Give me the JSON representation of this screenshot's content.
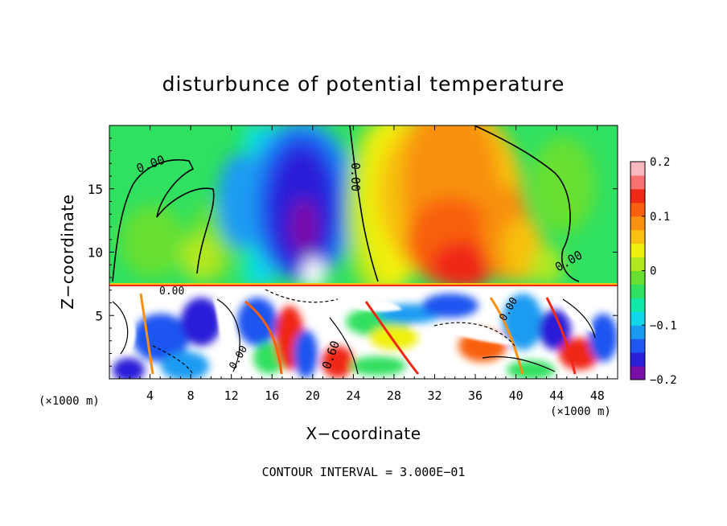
{
  "chart_data": {
    "type": "heatmap",
    "title": "disturbunce of potential temperature",
    "xlabel": "X−coordinate",
    "ylabel": "Z−coordinate",
    "x_unit_left": "(×1000 m)",
    "x_unit_right": "(×1000 m)",
    "footer": "CONTOUR INTERVAL = 3.000E−01",
    "xlim": [
      0,
      50
    ],
    "ylim": [
      0,
      20
    ],
    "x_ticks": [
      4,
      8,
      12,
      16,
      20,
      24,
      28,
      32,
      36,
      40,
      44,
      48
    ],
    "y_ticks": [
      5,
      10,
      15
    ],
    "colorbar": {
      "range": [
        -0.2,
        0.2
      ],
      "ticks": [
        -0.2,
        -0.1,
        0,
        0.1,
        0.2
      ],
      "tick_labels": [
        "−0.2",
        "−0.1",
        "0",
        "0.1",
        "0.2"
      ],
      "colors": [
        "#7a0fa8",
        "#2a1fd8",
        "#1f55f0",
        "#1a9bf2",
        "#10d8e8",
        "#10e8a8",
        "#30e060",
        "#68e030",
        "#b0e820",
        "#f0f010",
        "#f8c010",
        "#f89010",
        "#f86010",
        "#f02818",
        "#f87070",
        "#f8b8c0"
      ]
    },
    "contour_labels": [
      "0.00",
      "0.00",
      "0.00",
      "0.00",
      "0.00",
      "0.00",
      "0.60"
    ],
    "contour_interval": 0.3
  }
}
